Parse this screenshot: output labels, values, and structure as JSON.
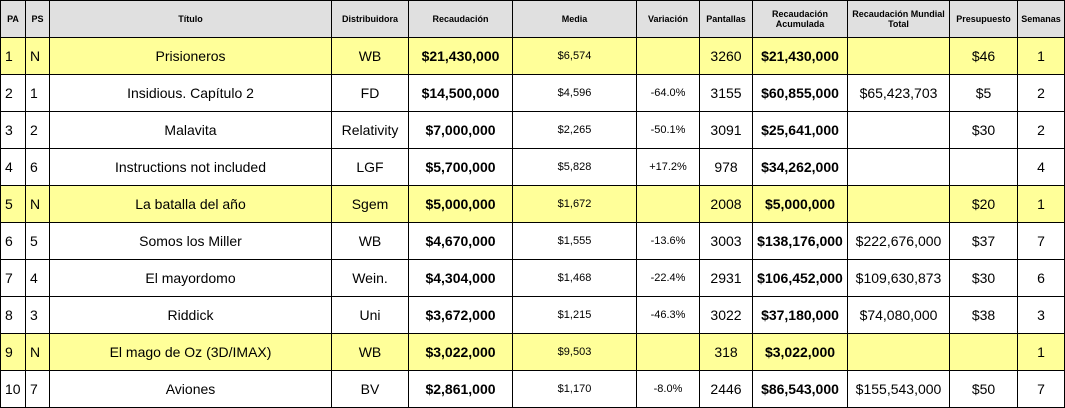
{
  "headers": {
    "pa": "PA",
    "ps": "PS",
    "titulo": "Título",
    "distribuidora": "Distribuidora",
    "recaudacion": "Recaudación",
    "media": "Media",
    "variacion": "Variación",
    "pantallas": "Pantallas",
    "acumulada": "Recaudación Acumulada",
    "mundial": "Recaudación Mundial Total",
    "presupuesto": "Presupuesto",
    "semanas": "Semanas"
  },
  "rows": [
    {
      "pa": "1",
      "ps": "N",
      "titulo": "Prisioneros",
      "distribuidora": "WB",
      "recaudacion": "$21,430,000",
      "media": "$6,574",
      "variacion": "",
      "pantallas": "3260",
      "acumulada": "$21,430,000",
      "mundial": "",
      "presupuesto": "$46",
      "semanas": "1"
    },
    {
      "pa": "2",
      "ps": "1",
      "titulo": "Insidious. Capítulo 2",
      "distribuidora": "FD",
      "recaudacion": "$14,500,000",
      "media": "$4,596",
      "variacion": "-64.0%",
      "pantallas": "3155",
      "acumulada": "$60,855,000",
      "mundial": "$65,423,703",
      "presupuesto": "$5",
      "semanas": "2"
    },
    {
      "pa": "3",
      "ps": "2",
      "titulo": "Malavita",
      "distribuidora": "Relativity",
      "recaudacion": "$7,000,000",
      "media": "$2,265",
      "variacion": "-50.1%",
      "pantallas": "3091",
      "acumulada": "$25,641,000",
      "mundial": "",
      "presupuesto": "$30",
      "semanas": "2"
    },
    {
      "pa": "4",
      "ps": "6",
      "titulo": "Instructions not included",
      "distribuidora": "LGF",
      "recaudacion": "$5,700,000",
      "media": "$5,828",
      "variacion": "+17.2%",
      "pantallas": "978",
      "acumulada": "$34,262,000",
      "mundial": "",
      "presupuesto": "",
      "semanas": "4"
    },
    {
      "pa": "5",
      "ps": "N",
      "titulo": "La batalla del año",
      "distribuidora": "Sgem",
      "recaudacion": "$5,000,000",
      "media": "$1,672",
      "variacion": "",
      "pantallas": "2008",
      "acumulada": "$5,000,000",
      "mundial": "",
      "presupuesto": "$20",
      "semanas": "1"
    },
    {
      "pa": "6",
      "ps": "5",
      "titulo": "Somos los Miller",
      "distribuidora": "WB",
      "recaudacion": "$4,670,000",
      "media": "$1,555",
      "variacion": "-13.6%",
      "pantallas": "3003",
      "acumulada": "$138,176,000",
      "mundial": "$222,676,000",
      "presupuesto": "$37",
      "semanas": "7"
    },
    {
      "pa": "7",
      "ps": "4",
      "titulo": "El mayordomo",
      "distribuidora": "Wein.",
      "recaudacion": "$4,304,000",
      "media": "$1,468",
      "variacion": "-22.4%",
      "pantallas": "2931",
      "acumulada": "$106,452,000",
      "mundial": "$109,630,873",
      "presupuesto": "$30",
      "semanas": "6"
    },
    {
      "pa": "8",
      "ps": "3",
      "titulo": "Riddick",
      "distribuidora": "Uni",
      "recaudacion": "$3,672,000",
      "media": "$1,215",
      "variacion": "-46.3%",
      "pantallas": "3022",
      "acumulada": "$37,180,000",
      "mundial": "$74,080,000",
      "presupuesto": "$38",
      "semanas": "3"
    },
    {
      "pa": "9",
      "ps": "N",
      "titulo": "El mago de Oz (3D/IMAX)",
      "distribuidora": "WB",
      "recaudacion": "$3,022,000",
      "media": "$9,503",
      "variacion": "",
      "pantallas": "318",
      "acumulada": "$3,022,000",
      "mundial": "",
      "presupuesto": "",
      "semanas": "1"
    },
    {
      "pa": "10",
      "ps": "7",
      "titulo": "Aviones",
      "distribuidora": "BV",
      "recaudacion": "$2,861,000",
      "media": "$1,170",
      "variacion": "-8.0%",
      "pantallas": "2446",
      "acumulada": "$86,543,000",
      "mundial": "$155,543,000",
      "presupuesto": "$50",
      "semanas": "7"
    }
  ],
  "colors": {
    "header_bg": "#e0e0e0",
    "new_entry_bg": "#ffff99",
    "border": "#000000"
  }
}
